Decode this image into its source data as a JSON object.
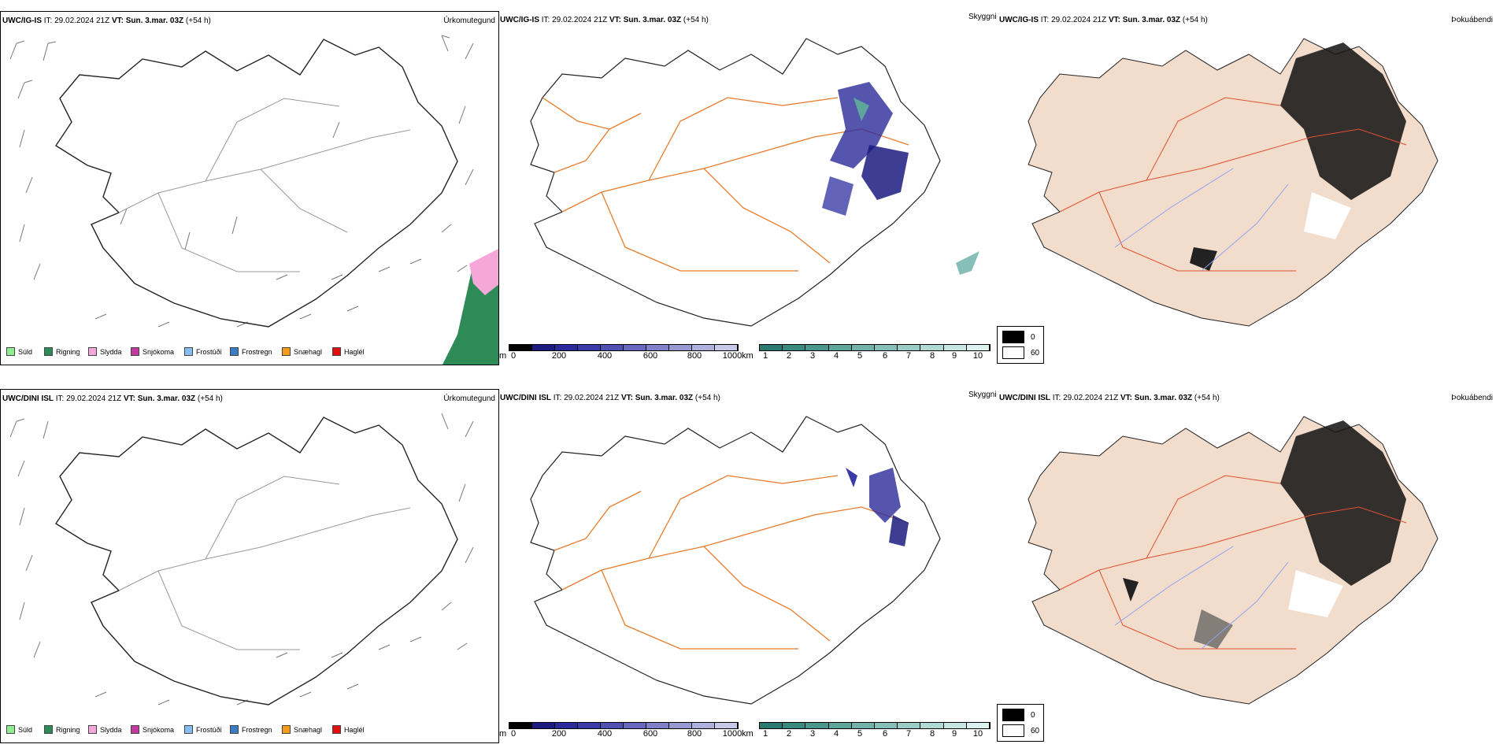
{
  "rows": [
    {
      "model": "UWC/IG-IS",
      "it_label": "IT:",
      "it_value": "29.02.2024 21Z",
      "vt_label": "VT:",
      "vt_value": "Sun. 3.mar. 03Z",
      "lead": "(+54 h)"
    },
    {
      "model": "UWC/DINI ISL",
      "it_label": "IT:",
      "it_value": "29.02.2024 21Z",
      "vt_label": "VT:",
      "vt_value": "Sun. 3.mar. 03Z",
      "lead": "(+54 h)"
    }
  ],
  "fields": {
    "precip_type": "Úrkomutegund",
    "cloud": "Skyggni",
    "fog": "Þokuábendi"
  },
  "precip_legend": [
    {
      "label": "Súld",
      "color": "#90ee90"
    },
    {
      "label": "Rigning",
      "color": "#2e8b57"
    },
    {
      "label": "Slydda",
      "color": "#f4a7d8"
    },
    {
      "label": "Snjókoma",
      "color": "#c0399b"
    },
    {
      "label": "Frostúði",
      "color": "#87bdf0"
    },
    {
      "label": "Frostregn",
      "color": "#3a7cc4"
    },
    {
      "label": "Snæhagl",
      "color": "#f39c1e"
    },
    {
      "label": "Haglél",
      "color": "#e01010"
    }
  ],
  "ceiling_scale": {
    "unit": "m",
    "ticks": [
      "0",
      "200",
      "400",
      "600",
      "800",
      "1000"
    ],
    "colors": [
      "#000000",
      "#1b1b80",
      "#2a2a9a",
      "#3b3ba8",
      "#5050b0",
      "#6868be",
      "#8080c8",
      "#9898d2",
      "#b0b0dc",
      "#c8c8e8"
    ]
  },
  "visibility_scale": {
    "unit": "km",
    "ticks": [
      "1",
      "2",
      "3",
      "4",
      "5",
      "6",
      "7",
      "8",
      "9",
      "10"
    ],
    "colors": [
      "#2a7a72",
      "#3a8a80",
      "#4b978d",
      "#5ea59b",
      "#72b2a9",
      "#86bfb7",
      "#9bccc5",
      "#b0d9d3",
      "#c6e6e1",
      "#ddf2ef"
    ]
  },
  "fog_legend": [
    {
      "label": "0",
      "color": "#000000"
    },
    {
      "label": "60",
      "color": "#ffffff"
    }
  ],
  "colors": {
    "roads": "#e87b2a",
    "roads_red": "#e05030",
    "land_fog": "#f2dccb",
    "rivers": "#8da4f0"
  }
}
